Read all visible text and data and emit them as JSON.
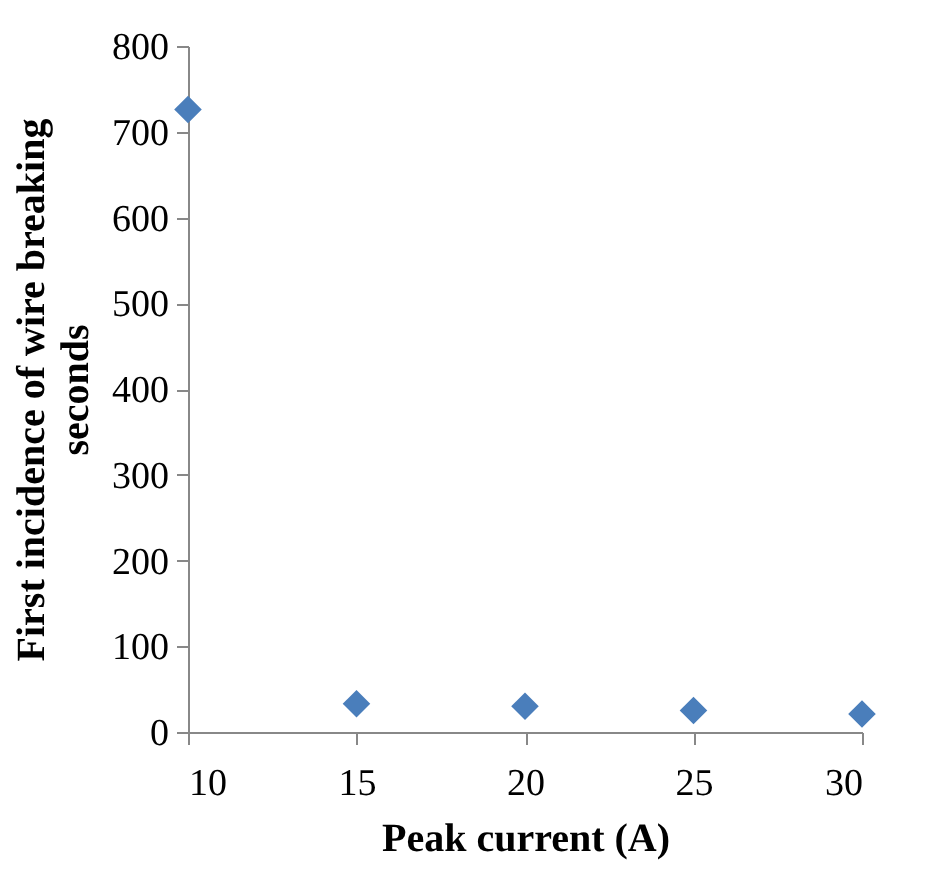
{
  "chart_data": {
    "type": "scatter",
    "xlabel": "Peak current (A)",
    "ylabel": "First incidence of wire breaking\nseconds",
    "x": [
      10,
      15,
      20,
      25,
      30
    ],
    "series": [
      {
        "color": "#4a7ebb",
        "values": [
          726,
          33,
          30,
          25,
          21
        ]
      }
    ],
    "xlim": [
      10,
      30
    ],
    "xticks": [
      10,
      15,
      20,
      25,
      30
    ],
    "ylim": [
      0,
      800
    ],
    "yticks": [
      0,
      100,
      200,
      300,
      400,
      500,
      600,
      700,
      800
    ],
    "marker": "diamond",
    "grid": false,
    "legend": false
  }
}
